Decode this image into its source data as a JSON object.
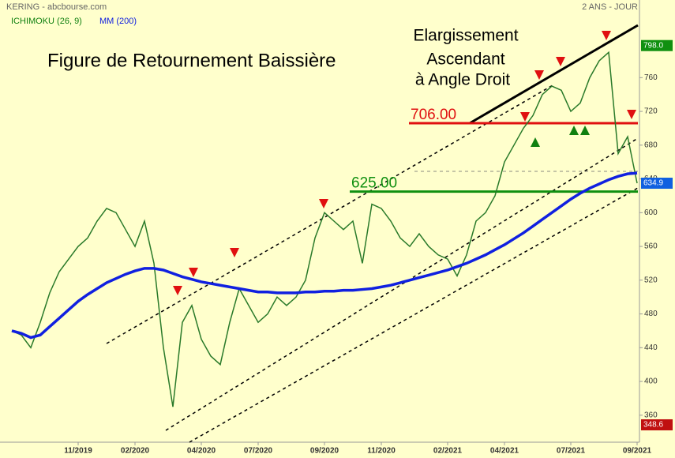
{
  "chart_data": {
    "type": "line",
    "header_left": "KERING - abcbourse.com",
    "header_right": "2 ANS - JOUR",
    "indicator": "ICHIMOKU (26, 9)",
    "title": "Figure de Retournement Baissière",
    "annotation": [
      "Elargissement",
      "Ascendant",
      "à Angle Droit"
    ],
    "categories": [
      null,
      null,
      null,
      null,
      null,
      null,
      null,
      "11/2019",
      null,
      null,
      null,
      null,
      null,
      "02/2020",
      null,
      null,
      null,
      null,
      null,
      null,
      "04/2020",
      null,
      null,
      null,
      null,
      null,
      "07/2020",
      null,
      null,
      null,
      null,
      null,
      null,
      "09/2020",
      null,
      null,
      null,
      null,
      null,
      "11/2020",
      null,
      null,
      null,
      null,
      null,
      null,
      "02/2021",
      null,
      null,
      null,
      null,
      null,
      "04/2021",
      null,
      null,
      null,
      null,
      null,
      null,
      "07/2021",
      null,
      null,
      null,
      null,
      null,
      null,
      "09/2021"
    ],
    "series": [
      {
        "color": "#2a7a2a",
        "values": [
          460,
          455,
          440,
          470,
          505,
          530,
          545,
          560,
          570,
          590,
          605,
          600,
          580,
          560,
          590,
          540,
          440,
          370,
          470,
          490,
          450,
          430,
          420,
          470,
          510,
          490,
          470,
          480,
          500,
          490,
          500,
          520,
          570,
          600,
          590,
          580,
          590,
          540,
          610,
          605,
          590,
          570,
          560,
          575,
          560,
          550,
          545,
          525,
          550,
          590,
          600,
          620,
          660,
          680,
          700,
          715,
          740,
          750,
          745,
          720,
          730,
          760,
          780,
          790,
          670,
          690,
          634.9
        ]
      },
      {
        "name": "MM (200)",
        "color": "#1020e0",
        "values": [
          460,
          457,
          452,
          455,
          465,
          475,
          485,
          495,
          503,
          510,
          517,
          522,
          527,
          531,
          534,
          534,
          532,
          528,
          524,
          521,
          518,
          516,
          514,
          512,
          510,
          508,
          506,
          506,
          505,
          505,
          505,
          506,
          506,
          507,
          507,
          508,
          508,
          509,
          510,
          512,
          514,
          517,
          520,
          523,
          526,
          529,
          532,
          536,
          540,
          545,
          550,
          556,
          562,
          569,
          576,
          584,
          592,
          600,
          608,
          616,
          623,
          629,
          634,
          639,
          643,
          646,
          647
        ]
      }
    ],
    "levels": [
      {
        "value": 706,
        "label": "706.00",
        "color": "#e01010"
      },
      {
        "value": 625,
        "label": "625.00",
        "color": "#109010"
      }
    ],
    "price_labels": [
      {
        "value": 798.0,
        "label": "798.0",
        "color": "#109010"
      },
      {
        "value": 634.9,
        "label": "634.9",
        "color": "#1060e0"
      },
      {
        "value": 348.6,
        "label": "348.6",
        "color": "#c01010"
      }
    ],
    "ylim": [
      328,
      852
    ],
    "yticks": [
      360,
      400,
      440,
      480,
      520,
      560,
      600,
      640,
      680,
      720,
      760
    ]
  }
}
